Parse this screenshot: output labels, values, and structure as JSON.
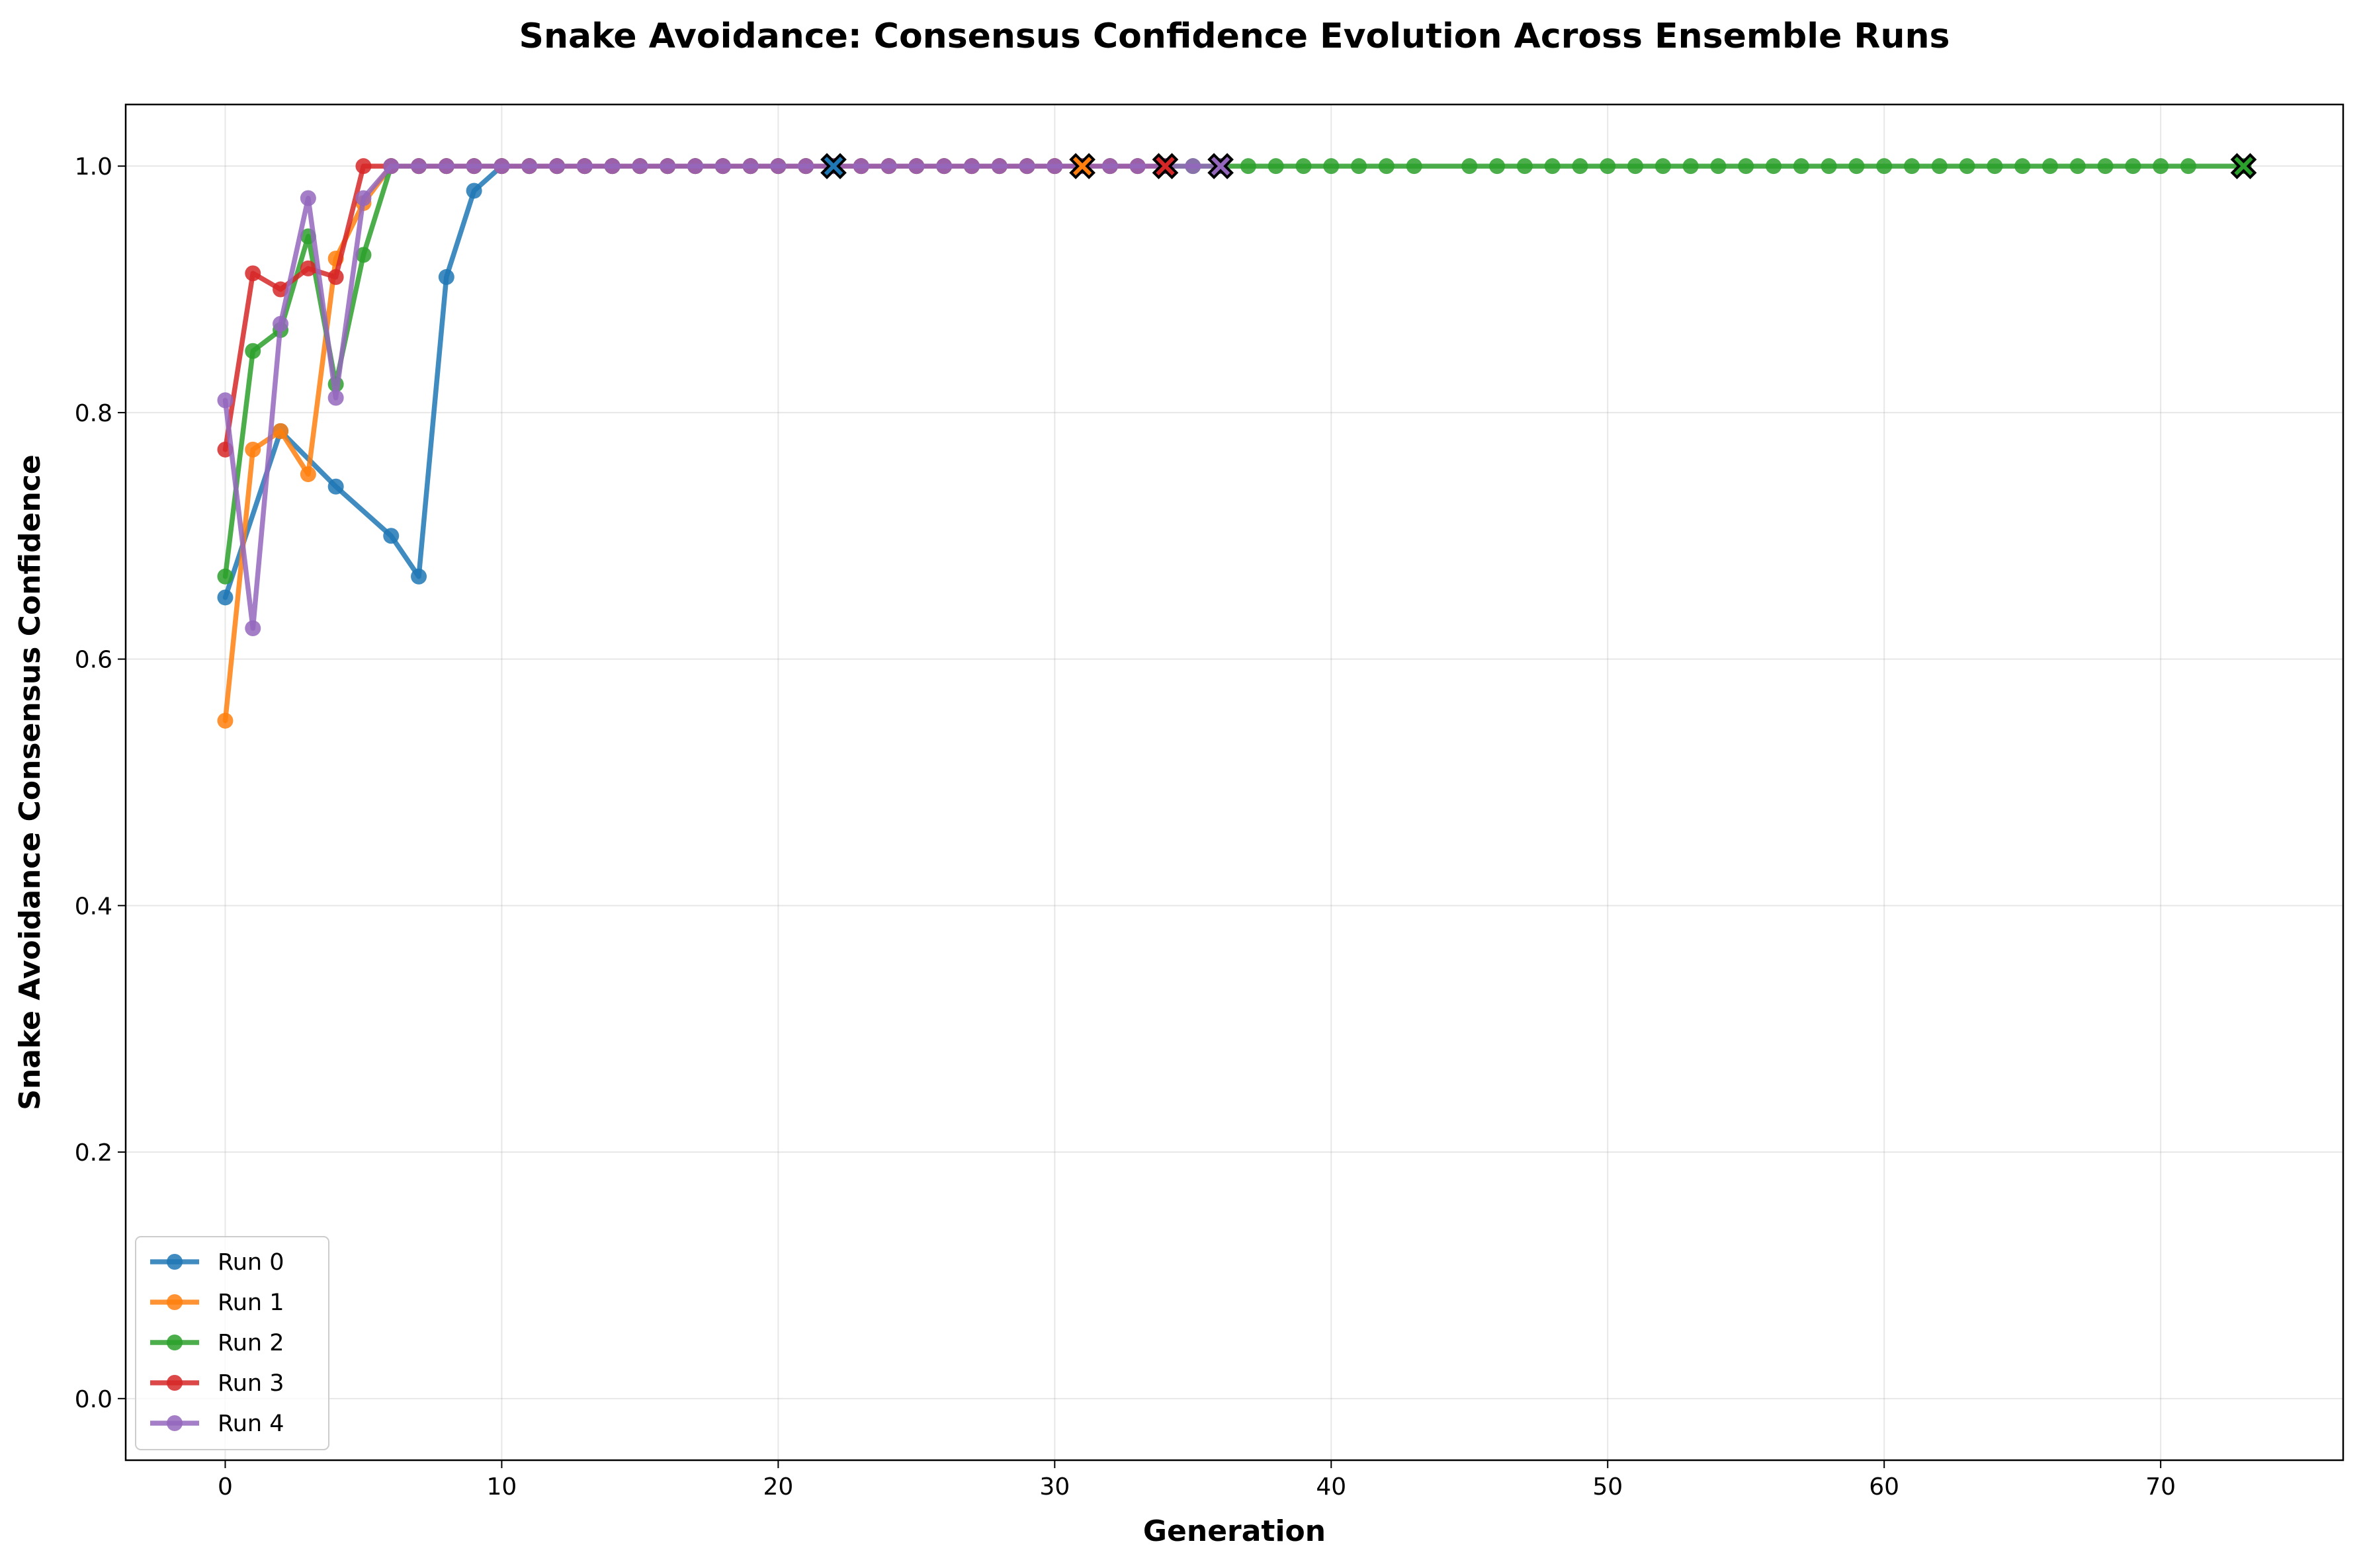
{
  "chart_data": {
    "type": "line",
    "title": "Snake Avoidance: Consensus Confidence Evolution Across Ensemble Runs",
    "xlabel": "Generation",
    "ylabel": "Snake Avoidance Consensus Confidence",
    "xlim": [
      -3.6,
      76.6
    ],
    "ylim": [
      -0.05,
      1.05
    ],
    "xticks": [
      0,
      10,
      20,
      30,
      40,
      50,
      60,
      70
    ],
    "yticks": [
      0.0,
      0.2,
      0.4,
      0.6,
      0.8,
      1.0
    ],
    "ytick_labels": [
      "0.0",
      "0.2",
      "0.4",
      "0.6",
      "0.8",
      "1.0"
    ],
    "grid": true,
    "legend_position": "lower-left",
    "series": [
      {
        "name": "Run 0",
        "color": "#1f77b4",
        "x": [
          0,
          2,
          4,
          6,
          7,
          8,
          9,
          10,
          11,
          12,
          13,
          14,
          15,
          16,
          17,
          18,
          19,
          20,
          21,
          22
        ],
        "y": [
          0.65,
          0.785,
          0.74,
          0.7,
          0.667,
          0.91,
          0.98,
          1.0,
          1.0,
          1.0,
          1.0,
          1.0,
          1.0,
          1.0,
          1.0,
          1.0,
          1.0,
          1.0,
          1.0,
          1.0
        ],
        "final": [
          22,
          1.0
        ]
      },
      {
        "name": "Run 1",
        "color": "#ff7f0e",
        "x": [
          0,
          1,
          2,
          3,
          4,
          5,
          6,
          7,
          8,
          9,
          10,
          11,
          12,
          13,
          14,
          15,
          16,
          17,
          18,
          19,
          20,
          21,
          22,
          23,
          24,
          25,
          26,
          27,
          28,
          29,
          30,
          31
        ],
        "y": [
          0.55,
          0.77,
          0.785,
          0.75,
          0.925,
          0.97,
          1.0,
          1.0,
          1.0,
          1.0,
          1.0,
          1.0,
          1.0,
          1.0,
          1.0,
          1.0,
          1.0,
          1.0,
          1.0,
          1.0,
          1.0,
          1.0,
          1.0,
          1.0,
          1.0,
          1.0,
          1.0,
          1.0,
          1.0,
          1.0,
          1.0,
          1.0
        ],
        "final": [
          31,
          1.0
        ]
      },
      {
        "name": "Run 2",
        "color": "#2ca02c",
        "x": [
          0,
          1,
          2,
          3,
          4,
          5,
          6,
          7,
          8,
          9,
          10,
          11,
          12,
          13,
          14,
          15,
          16,
          17,
          18,
          19,
          20,
          21,
          22,
          23,
          24,
          25,
          26,
          27,
          28,
          29,
          30,
          31,
          32,
          33,
          34,
          35,
          36,
          37,
          38,
          39,
          40,
          41,
          42,
          43,
          45,
          46,
          47,
          48,
          49,
          50,
          51,
          52,
          53,
          54,
          55,
          56,
          57,
          58,
          59,
          60,
          61,
          62,
          63,
          64,
          65,
          66,
          67,
          68,
          69,
          70,
          71,
          73
        ],
        "y": [
          0.667,
          0.85,
          0.867,
          0.943,
          0.823,
          0.928,
          1.0,
          1.0,
          1.0,
          1.0,
          1.0,
          1.0,
          1.0,
          1.0,
          1.0,
          1.0,
          1.0,
          1.0,
          1.0,
          1.0,
          1.0,
          1.0,
          1.0,
          1.0,
          1.0,
          1.0,
          1.0,
          1.0,
          1.0,
          1.0,
          1.0,
          1.0,
          1.0,
          1.0,
          1.0,
          1.0,
          1.0,
          1.0,
          1.0,
          1.0,
          1.0,
          1.0,
          1.0,
          1.0,
          1.0,
          1.0,
          1.0,
          1.0,
          1.0,
          1.0,
          1.0,
          1.0,
          1.0,
          1.0,
          1.0,
          1.0,
          1.0,
          1.0,
          1.0,
          1.0,
          1.0,
          1.0,
          1.0,
          1.0,
          1.0,
          1.0,
          1.0,
          1.0,
          1.0,
          1.0,
          1.0,
          1.0
        ],
        "final": [
          73,
          1.0
        ]
      },
      {
        "name": "Run 3",
        "color": "#d62728",
        "x": [
          0,
          1,
          2,
          3,
          4,
          5,
          6,
          7,
          8,
          9,
          10,
          11,
          12,
          13,
          14,
          15,
          16,
          17,
          18,
          19,
          20,
          21,
          22,
          23,
          24,
          25,
          26,
          27,
          28,
          29,
          30,
          31,
          32,
          33,
          34
        ],
        "y": [
          0.77,
          0.913,
          0.9,
          0.917,
          0.91,
          1.0,
          1.0,
          1.0,
          1.0,
          1.0,
          1.0,
          1.0,
          1.0,
          1.0,
          1.0,
          1.0,
          1.0,
          1.0,
          1.0,
          1.0,
          1.0,
          1.0,
          1.0,
          1.0,
          1.0,
          1.0,
          1.0,
          1.0,
          1.0,
          1.0,
          1.0,
          1.0,
          1.0,
          1.0,
          1.0
        ],
        "final": [
          34,
          1.0
        ]
      },
      {
        "name": "Run 4",
        "color": "#9467bd",
        "x": [
          0,
          1,
          2,
          3,
          4,
          5,
          6,
          7,
          8,
          9,
          10,
          11,
          12,
          13,
          14,
          15,
          16,
          17,
          18,
          19,
          20,
          21,
          22,
          23,
          24,
          25,
          26,
          27,
          28,
          29,
          30,
          31,
          32,
          33,
          34,
          35,
          36
        ],
        "y": [
          0.81,
          0.625,
          0.872,
          0.974,
          0.812,
          0.974,
          1.0,
          1.0,
          1.0,
          1.0,
          1.0,
          1.0,
          1.0,
          1.0,
          1.0,
          1.0,
          1.0,
          1.0,
          1.0,
          1.0,
          1.0,
          1.0,
          1.0,
          1.0,
          1.0,
          1.0,
          1.0,
          1.0,
          1.0,
          1.0,
          1.0,
          1.0,
          1.0,
          1.0,
          1.0,
          1.0,
          1.0
        ],
        "final": [
          36,
          1.0
        ]
      }
    ]
  }
}
